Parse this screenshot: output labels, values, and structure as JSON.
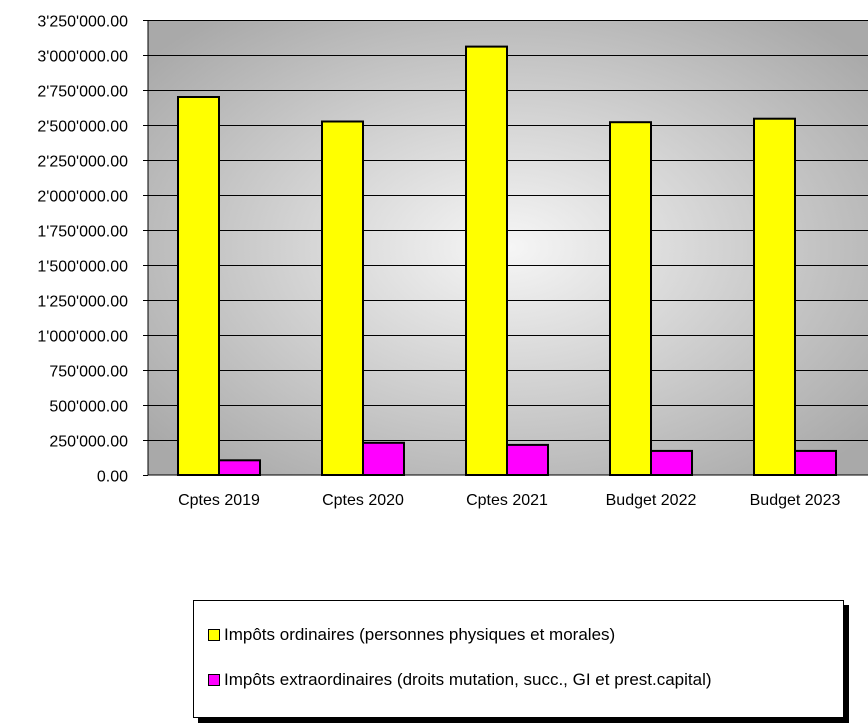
{
  "chart_data": {
    "type": "bar",
    "categories": [
      "Cptes 2019",
      "Cptes 2020",
      "Cptes 2021",
      "Budget 2022",
      "Budget 2023"
    ],
    "series": [
      {
        "name": "Impôts ordinaires (personnes physiques et morales)",
        "values": [
          2700000,
          2525000,
          3060000,
          2520000,
          2545000
        ],
        "color": "#ffff00"
      },
      {
        "name": "Impôts extraordinaires (droits mutation, succ., GI et prest.capital)",
        "values": [
          105000,
          230000,
          215000,
          172000,
          172000
        ],
        "color": "#ff00ff"
      }
    ],
    "ylim": [
      0,
      3250000
    ],
    "yticks": [
      0,
      250000,
      500000,
      750000,
      1000000,
      1250000,
      1500000,
      1750000,
      2000000,
      2250000,
      2500000,
      2750000,
      3000000,
      3250000
    ],
    "ytick_labels": [
      "0.00",
      "250'000.00",
      "500'000.00",
      "750'000.00",
      "1'000'000.00",
      "1'250'000.00",
      "1'500'000.00",
      "1'750'000.00",
      "2'000'000.00",
      "2'250'000.00",
      "2'500'000.00",
      "2'750'000.00",
      "3'000'000.00",
      "3'250'000.00"
    ],
    "grid": true,
    "legend_position": "bottom"
  }
}
